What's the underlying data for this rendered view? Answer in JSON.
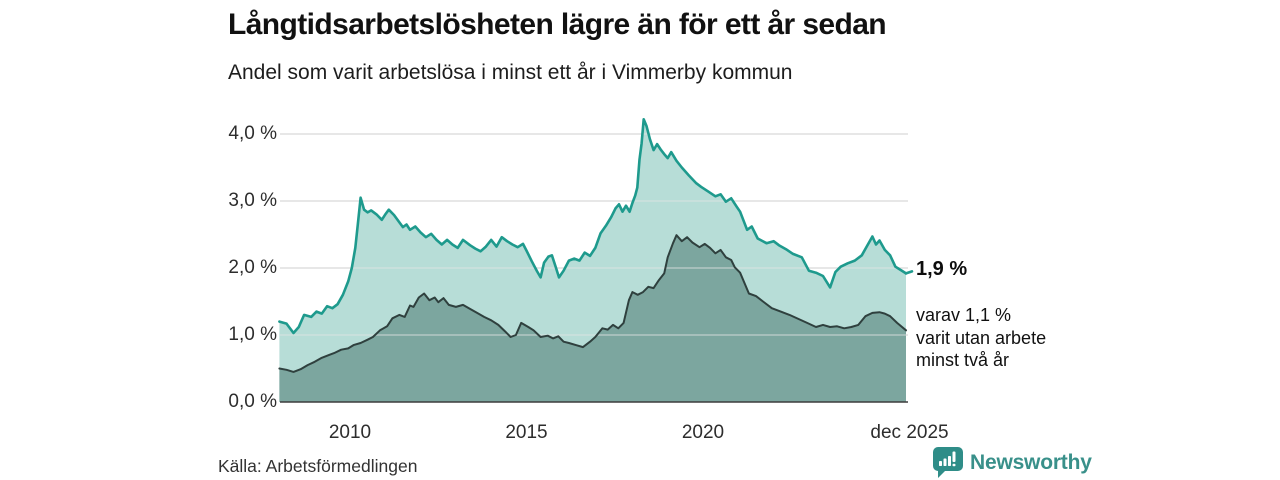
{
  "header": {
    "title": "Långtidsarbetslösheten lägre än för ett år sedan",
    "subtitle": "Andel som varit arbetslösa i minst ett år i Vimmerby kommun"
  },
  "annotations": {
    "end_value": "1,9 %",
    "end_sub": "varav 1,1 %\nvarit utan arbete\nminst två år"
  },
  "footer": {
    "source": "Källa: Arbetsförmedlingen",
    "logo_text": "Newsworthy"
  },
  "colors": {
    "teal_line": "#1E9A8D",
    "light_fill": "#B7DDD7",
    "dark_fill": "#7CA69F",
    "dark_line": "#2F403E",
    "grid": "#E1E1E1",
    "grid_overlay": "rgba(228,228,228,0.55)",
    "baseline": "#3D3D3D",
    "brand_teal": "#39908A",
    "text": "#141414"
  },
  "chart_data": {
    "type": "area",
    "title": "Långtidsarbetslösheten lägre än för ett år sedan",
    "subtitle": "Andel som varit arbetslösa i minst ett år i Vimmerby kommun",
    "xlabel": "",
    "ylabel": "",
    "x_range_years": [
      2008.0,
      2025.75
    ],
    "ylim": [
      0,
      4.4
    ],
    "grid": true,
    "legend_position": "none",
    "y_ticks": [
      {
        "label": "0,0 %",
        "value": 0
      },
      {
        "label": "1,0 %",
        "value": 1
      },
      {
        "label": "2,0 %",
        "value": 2
      },
      {
        "label": "3,0 %",
        "value": 3
      },
      {
        "label": "4,0 %",
        "value": 4
      }
    ],
    "x_ticks": [
      {
        "label": "2010",
        "year": 2010
      },
      {
        "label": "2015",
        "year": 2015
      },
      {
        "label": "2020",
        "year": 2020
      },
      {
        "label": "dec 2025",
        "year": 2025.85
      }
    ],
    "series": [
      {
        "name": "Andel arbetslösa minst ett år",
        "end_label": "1,9 %",
        "end_value_pct": 1.9,
        "points": [
          [
            2008.0,
            1.2
          ],
          [
            2008.2,
            1.17
          ],
          [
            2008.4,
            1.03
          ],
          [
            2008.55,
            1.12
          ],
          [
            2008.7,
            1.3
          ],
          [
            2008.9,
            1.27
          ],
          [
            2009.05,
            1.35
          ],
          [
            2009.2,
            1.32
          ],
          [
            2009.35,
            1.43
          ],
          [
            2009.5,
            1.4
          ],
          [
            2009.65,
            1.46
          ],
          [
            2009.8,
            1.6
          ],
          [
            2009.95,
            1.8
          ],
          [
            2010.05,
            2.0
          ],
          [
            2010.15,
            2.3
          ],
          [
            2010.22,
            2.65
          ],
          [
            2010.3,
            3.05
          ],
          [
            2010.4,
            2.87
          ],
          [
            2010.5,
            2.83
          ],
          [
            2010.6,
            2.86
          ],
          [
            2010.75,
            2.8
          ],
          [
            2010.9,
            2.72
          ],
          [
            2011.0,
            2.8
          ],
          [
            2011.1,
            2.87
          ],
          [
            2011.25,
            2.79
          ],
          [
            2011.4,
            2.68
          ],
          [
            2011.5,
            2.61
          ],
          [
            2011.6,
            2.65
          ],
          [
            2011.7,
            2.57
          ],
          [
            2011.85,
            2.62
          ],
          [
            2012.0,
            2.53
          ],
          [
            2012.15,
            2.46
          ],
          [
            2012.3,
            2.51
          ],
          [
            2012.45,
            2.42
          ],
          [
            2012.6,
            2.35
          ],
          [
            2012.75,
            2.42
          ],
          [
            2012.9,
            2.35
          ],
          [
            2013.05,
            2.3
          ],
          [
            2013.2,
            2.42
          ],
          [
            2013.4,
            2.34
          ],
          [
            2013.55,
            2.29
          ],
          [
            2013.7,
            2.25
          ],
          [
            2013.85,
            2.32
          ],
          [
            2014.0,
            2.42
          ],
          [
            2014.15,
            2.32
          ],
          [
            2014.3,
            2.46
          ],
          [
            2014.45,
            2.4
          ],
          [
            2014.6,
            2.35
          ],
          [
            2014.75,
            2.31
          ],
          [
            2014.9,
            2.36
          ],
          [
            2015.0,
            2.26
          ],
          [
            2015.15,
            2.1
          ],
          [
            2015.3,
            1.95
          ],
          [
            2015.4,
            1.86
          ],
          [
            2015.5,
            2.08
          ],
          [
            2015.62,
            2.17
          ],
          [
            2015.72,
            2.19
          ],
          [
            2015.82,
            2.03
          ],
          [
            2015.92,
            1.86
          ],
          [
            2016.05,
            1.96
          ],
          [
            2016.2,
            2.11
          ],
          [
            2016.35,
            2.14
          ],
          [
            2016.5,
            2.11
          ],
          [
            2016.65,
            2.23
          ],
          [
            2016.8,
            2.18
          ],
          [
            2016.95,
            2.3
          ],
          [
            2017.1,
            2.52
          ],
          [
            2017.25,
            2.63
          ],
          [
            2017.4,
            2.76
          ],
          [
            2017.52,
            2.89
          ],
          [
            2017.62,
            2.95
          ],
          [
            2017.72,
            2.84
          ],
          [
            2017.82,
            2.93
          ],
          [
            2017.92,
            2.84
          ],
          [
            2018.0,
            2.97
          ],
          [
            2018.08,
            3.08
          ],
          [
            2018.14,
            3.2
          ],
          [
            2018.2,
            3.62
          ],
          [
            2018.26,
            3.86
          ],
          [
            2018.32,
            4.22
          ],
          [
            2018.4,
            4.12
          ],
          [
            2018.5,
            3.92
          ],
          [
            2018.6,
            3.76
          ],
          [
            2018.7,
            3.85
          ],
          [
            2018.8,
            3.77
          ],
          [
            2018.9,
            3.7
          ],
          [
            2019.0,
            3.64
          ],
          [
            2019.1,
            3.73
          ],
          [
            2019.25,
            3.6
          ],
          [
            2019.4,
            3.5
          ],
          [
            2019.6,
            3.38
          ],
          [
            2019.8,
            3.27
          ],
          [
            2019.95,
            3.21
          ],
          [
            2020.15,
            3.14
          ],
          [
            2020.35,
            3.07
          ],
          [
            2020.5,
            3.1
          ],
          [
            2020.65,
            2.99
          ],
          [
            2020.8,
            3.04
          ],
          [
            2020.95,
            2.92
          ],
          [
            2021.05,
            2.84
          ],
          [
            2021.25,
            2.57
          ],
          [
            2021.38,
            2.62
          ],
          [
            2021.55,
            2.44
          ],
          [
            2021.8,
            2.37
          ],
          [
            2022.0,
            2.4
          ],
          [
            2022.15,
            2.34
          ],
          [
            2022.35,
            2.28
          ],
          [
            2022.55,
            2.21
          ],
          [
            2022.8,
            2.16
          ],
          [
            2023.0,
            1.96
          ],
          [
            2023.2,
            1.93
          ],
          [
            2023.4,
            1.88
          ],
          [
            2023.6,
            1.71
          ],
          [
            2023.75,
            1.94
          ],
          [
            2023.9,
            2.02
          ],
          [
            2024.1,
            2.07
          ],
          [
            2024.3,
            2.11
          ],
          [
            2024.5,
            2.19
          ],
          [
            2024.65,
            2.33
          ],
          [
            2024.8,
            2.47
          ],
          [
            2024.9,
            2.35
          ],
          [
            2025.0,
            2.41
          ],
          [
            2025.15,
            2.27
          ],
          [
            2025.3,
            2.19
          ],
          [
            2025.45,
            2.02
          ],
          [
            2025.6,
            1.97
          ],
          [
            2025.75,
            1.92
          ]
        ]
      },
      {
        "name": "varav utan arbete minst två år",
        "end_label": "1,1 %",
        "end_value_pct": 1.1,
        "points": [
          [
            2008.0,
            0.5
          ],
          [
            2008.2,
            0.48
          ],
          [
            2008.4,
            0.45
          ],
          [
            2008.6,
            0.49
          ],
          [
            2008.8,
            0.55
          ],
          [
            2009.0,
            0.6
          ],
          [
            2009.2,
            0.66
          ],
          [
            2009.4,
            0.7
          ],
          [
            2009.55,
            0.73
          ],
          [
            2009.75,
            0.78
          ],
          [
            2009.95,
            0.8
          ],
          [
            2010.1,
            0.85
          ],
          [
            2010.3,
            0.88
          ],
          [
            2010.5,
            0.93
          ],
          [
            2010.65,
            0.97
          ],
          [
            2010.85,
            1.07
          ],
          [
            2011.05,
            1.13
          ],
          [
            2011.2,
            1.25
          ],
          [
            2011.4,
            1.3
          ],
          [
            2011.55,
            1.27
          ],
          [
            2011.7,
            1.44
          ],
          [
            2011.8,
            1.42
          ],
          [
            2011.95,
            1.56
          ],
          [
            2012.1,
            1.62
          ],
          [
            2012.25,
            1.52
          ],
          [
            2012.4,
            1.56
          ],
          [
            2012.5,
            1.49
          ],
          [
            2012.65,
            1.55
          ],
          [
            2012.8,
            1.45
          ],
          [
            2013.0,
            1.42
          ],
          [
            2013.2,
            1.45
          ],
          [
            2013.4,
            1.39
          ],
          [
            2013.6,
            1.33
          ],
          [
            2013.8,
            1.27
          ],
          [
            2014.0,
            1.22
          ],
          [
            2014.2,
            1.15
          ],
          [
            2014.4,
            1.05
          ],
          [
            2014.55,
            0.97
          ],
          [
            2014.7,
            1.0
          ],
          [
            2014.85,
            1.18
          ],
          [
            2015.05,
            1.12
          ],
          [
            2015.2,
            1.07
          ],
          [
            2015.4,
            0.97
          ],
          [
            2015.6,
            0.99
          ],
          [
            2015.75,
            0.95
          ],
          [
            2015.9,
            0.98
          ],
          [
            2016.05,
            0.9
          ],
          [
            2016.2,
            0.88
          ],
          [
            2016.4,
            0.85
          ],
          [
            2016.6,
            0.82
          ],
          [
            2016.8,
            0.9
          ],
          [
            2016.95,
            0.97
          ],
          [
            2017.15,
            1.1
          ],
          [
            2017.3,
            1.08
          ],
          [
            2017.45,
            1.15
          ],
          [
            2017.6,
            1.1
          ],
          [
            2017.75,
            1.18
          ],
          [
            2017.9,
            1.52
          ],
          [
            2018.0,
            1.64
          ],
          [
            2018.15,
            1.6
          ],
          [
            2018.3,
            1.64
          ],
          [
            2018.45,
            1.72
          ],
          [
            2018.6,
            1.7
          ],
          [
            2018.75,
            1.82
          ],
          [
            2018.9,
            1.92
          ],
          [
            2019.0,
            2.16
          ],
          [
            2019.15,
            2.37
          ],
          [
            2019.25,
            2.49
          ],
          [
            2019.4,
            2.4
          ],
          [
            2019.55,
            2.46
          ],
          [
            2019.7,
            2.38
          ],
          [
            2019.9,
            2.31
          ],
          [
            2020.05,
            2.36
          ],
          [
            2020.2,
            2.3
          ],
          [
            2020.35,
            2.22
          ],
          [
            2020.5,
            2.27
          ],
          [
            2020.65,
            2.16
          ],
          [
            2020.8,
            2.12
          ],
          [
            2020.9,
            2.01
          ],
          [
            2021.05,
            1.93
          ],
          [
            2021.3,
            1.62
          ],
          [
            2021.5,
            1.58
          ],
          [
            2021.7,
            1.5
          ],
          [
            2021.95,
            1.4
          ],
          [
            2022.2,
            1.35
          ],
          [
            2022.45,
            1.3
          ],
          [
            2022.7,
            1.24
          ],
          [
            2022.95,
            1.18
          ],
          [
            2023.2,
            1.12
          ],
          [
            2023.4,
            1.15
          ],
          [
            2023.6,
            1.12
          ],
          [
            2023.8,
            1.13
          ],
          [
            2024.0,
            1.1
          ],
          [
            2024.2,
            1.12
          ],
          [
            2024.4,
            1.15
          ],
          [
            2024.6,
            1.28
          ],
          [
            2024.8,
            1.33
          ],
          [
            2025.0,
            1.34
          ],
          [
            2025.15,
            1.32
          ],
          [
            2025.3,
            1.28
          ],
          [
            2025.5,
            1.18
          ],
          [
            2025.75,
            1.07
          ]
        ]
      }
    ]
  }
}
